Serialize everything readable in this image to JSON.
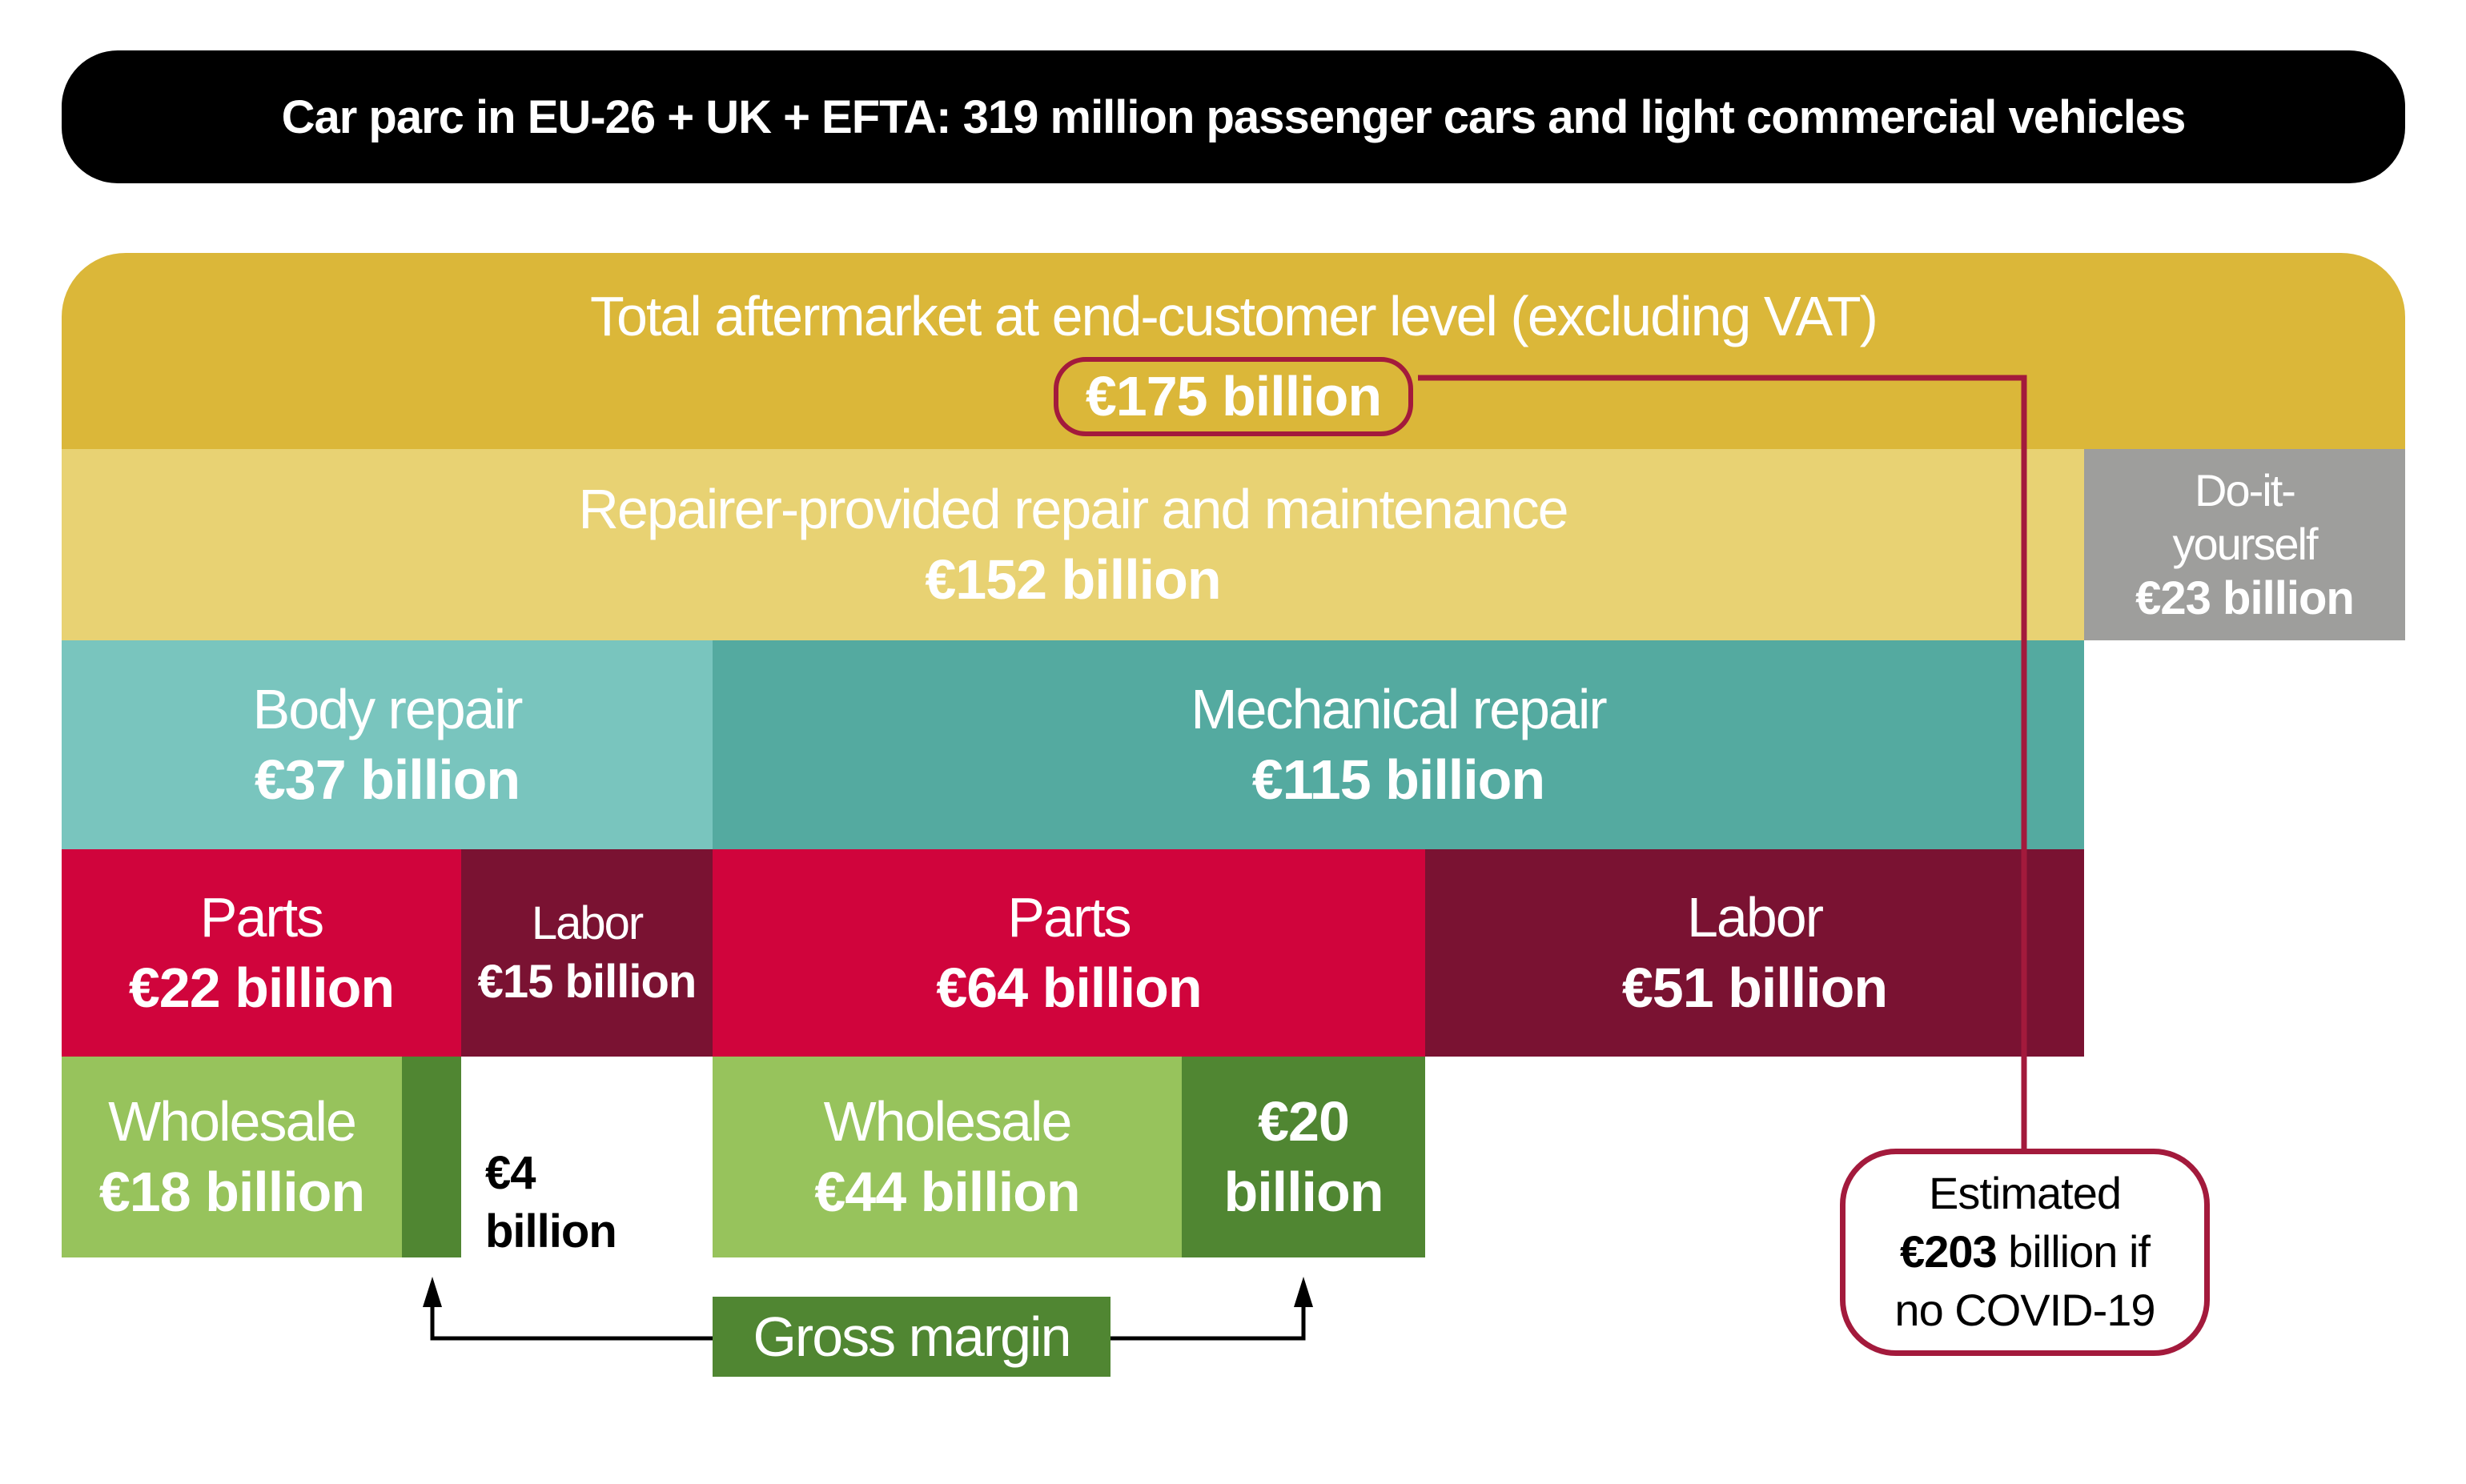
{
  "title": "Car parc in EU-26 + UK + EFTA: 319 million passenger cars and light commercial vehicles",
  "total": {
    "label": "Total aftermarket at end-customer level (excluding VAT)",
    "value": "€175 billion"
  },
  "repairer": {
    "label": "Repairer-provided repair and maintenance",
    "value": "€152 billion"
  },
  "diy": {
    "label_line1": "Do-it-",
    "label_line2": "yourself",
    "value": "€23 billion"
  },
  "body_repair": {
    "label": "Body repair",
    "value": "€37 billion"
  },
  "mechanical_repair": {
    "label": "Mechanical repair",
    "value": "€115 billion"
  },
  "body_parts": {
    "label": "Parts",
    "value": "€22 billion"
  },
  "body_labor": {
    "label": "Labor",
    "value": "€15 billion"
  },
  "mech_parts": {
    "label": "Parts",
    "value": "€64 billion"
  },
  "mech_labor": {
    "label": "Labor",
    "value": "€51 billion"
  },
  "body_wholesale": {
    "label": "Wholesale",
    "value": "€18 billion",
    "margin_line1": "€4",
    "margin_line2": "billion"
  },
  "mech_wholesale": {
    "label": "Wholesale",
    "value": "€44 billion",
    "margin_line1": "€20",
    "margin_line2": "billion"
  },
  "gross_margin": "Gross margin",
  "estimate": {
    "line1": "Estimated",
    "value": "€203",
    "line2_rest": " billion if",
    "line3": "no COVID-19"
  },
  "colors": {
    "title_bg": "#000000",
    "total": "#DBB739",
    "repairer": "#E8D273",
    "diy": "#9E9E9C",
    "body_repair": "#79C5BE",
    "mechanical_repair": "#54AAA0",
    "parts": "#D0043C",
    "labor": "#7A1232",
    "wholesale": "#97C35C",
    "gross_margin": "#508632",
    "connector": "#A31A3C"
  }
}
